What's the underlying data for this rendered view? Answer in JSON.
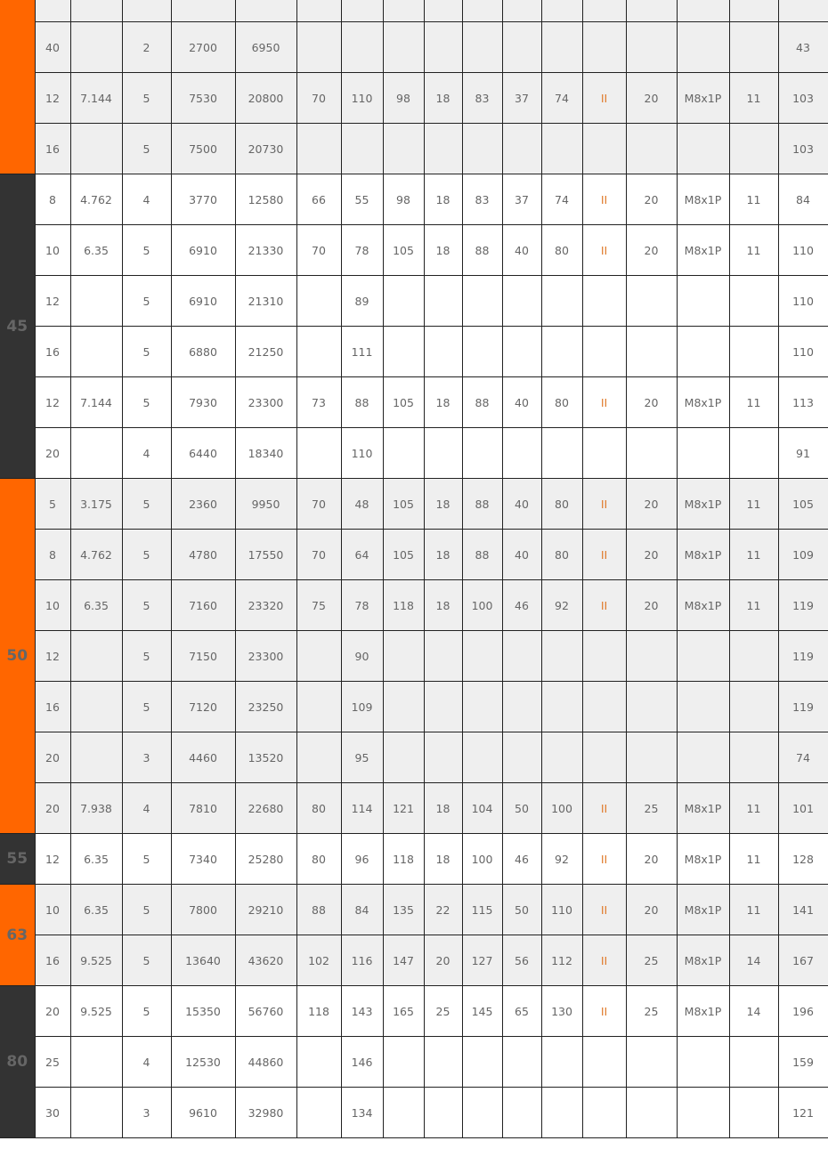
{
  "colors": {
    "orange": "#ff6600",
    "dark": "#333333",
    "accent": "#e07b2c",
    "row_grey": "#efefef",
    "row_white": "#ffffff"
  },
  "groups": [
    {
      "label": "",
      "color": "orange",
      "shade": "grey",
      "partial_top": true,
      "rows": [
        [
          "40",
          "",
          "2",
          "2700",
          "6950",
          "",
          "",
          "",
          "",
          "",
          "",
          "",
          "",
          "",
          "",
          "",
          "43"
        ],
        [
          "12",
          "7.144",
          "5",
          "7530",
          "20800",
          "70",
          "110",
          "98",
          "18",
          "83",
          "37",
          "74",
          "II",
          "20",
          "M8x1P",
          "11",
          "103"
        ],
        [
          "16",
          "",
          "5",
          "7500",
          "20730",
          "",
          "",
          "",
          "",
          "",
          "",
          "",
          "",
          "",
          "",
          "",
          "103"
        ]
      ]
    },
    {
      "label": "45",
      "color": "dark",
      "shade": "white",
      "rows": [
        [
          "8",
          "4.762",
          "4",
          "3770",
          "12580",
          "66",
          "55",
          "98",
          "18",
          "83",
          "37",
          "74",
          "II",
          "20",
          "M8x1P",
          "11",
          "84"
        ],
        [
          "10",
          "6.35",
          "5",
          "6910",
          "21330",
          "70",
          "78",
          "105",
          "18",
          "88",
          "40",
          "80",
          "II",
          "20",
          "M8x1P",
          "11",
          "110"
        ],
        [
          "12",
          "",
          "5",
          "6910",
          "21310",
          "",
          "89",
          "",
          "",
          "",
          "",
          "",
          "",
          "",
          "",
          "",
          "110"
        ],
        [
          "16",
          "",
          "5",
          "6880",
          "21250",
          "",
          "111",
          "",
          "",
          "",
          "",
          "",
          "",
          "",
          "",
          "",
          "110"
        ],
        [
          "12",
          "7.144",
          "5",
          "7930",
          "23300",
          "73",
          "88",
          "105",
          "18",
          "88",
          "40",
          "80",
          "II",
          "20",
          "M8x1P",
          "11",
          "113"
        ],
        [
          "20",
          "",
          "4",
          "6440",
          "18340",
          "",
          "110",
          "",
          "",
          "",
          "",
          "",
          "",
          "",
          "",
          "",
          "91"
        ]
      ]
    },
    {
      "label": "50",
      "color": "orange",
      "shade": "grey",
      "rows": [
        [
          "5",
          "3.175",
          "5",
          "2360",
          "9950",
          "70",
          "48",
          "105",
          "18",
          "88",
          "40",
          "80",
          "II",
          "20",
          "M8x1P",
          "11",
          "105"
        ],
        [
          "8",
          "4.762",
          "5",
          "4780",
          "17550",
          "70",
          "64",
          "105",
          "18",
          "88",
          "40",
          "80",
          "II",
          "20",
          "M8x1P",
          "11",
          "109"
        ],
        [
          "10",
          "6.35",
          "5",
          "7160",
          "23320",
          "75",
          "78",
          "118",
          "18",
          "100",
          "46",
          "92",
          "II",
          "20",
          "M8x1P",
          "11",
          "119"
        ],
        [
          "12",
          "",
          "5",
          "7150",
          "23300",
          "",
          "90",
          "",
          "",
          "",
          "",
          "",
          "",
          "",
          "",
          "",
          "119"
        ],
        [
          "16",
          "",
          "5",
          "7120",
          "23250",
          "",
          "109",
          "",
          "",
          "",
          "",
          "",
          "",
          "",
          "",
          "",
          "119"
        ],
        [
          "20",
          "",
          "3",
          "4460",
          "13520",
          "",
          "95",
          "",
          "",
          "",
          "",
          "",
          "",
          "",
          "",
          "",
          "74"
        ],
        [
          "20",
          "7.938",
          "4",
          "7810",
          "22680",
          "80",
          "114",
          "121",
          "18",
          "104",
          "50",
          "100",
          "II",
          "25",
          "M8x1P",
          "11",
          "101"
        ]
      ]
    },
    {
      "label": "55",
      "color": "dark",
      "shade": "white",
      "rows": [
        [
          "12",
          "6.35",
          "5",
          "7340",
          "25280",
          "80",
          "96",
          "118",
          "18",
          "100",
          "46",
          "92",
          "II",
          "20",
          "M8x1P",
          "11",
          "128"
        ]
      ]
    },
    {
      "label": "63",
      "color": "orange",
      "shade": "grey",
      "rows": [
        [
          "10",
          "6.35",
          "5",
          "7800",
          "29210",
          "88",
          "84",
          "135",
          "22",
          "115",
          "50",
          "110",
          "II",
          "20",
          "M8x1P",
          "11",
          "141"
        ],
        [
          "16",
          "9.525",
          "5",
          "13640",
          "43620",
          "102",
          "116",
          "147",
          "20",
          "127",
          "56",
          "112",
          "II",
          "25",
          "M8x1P",
          "14",
          "167"
        ]
      ]
    },
    {
      "label": "80",
      "color": "dark",
      "shade": "white",
      "rows": [
        [
          "20",
          "9.525",
          "5",
          "15350",
          "56760",
          "118",
          "143",
          "165",
          "25",
          "145",
          "65",
          "130",
          "II",
          "25",
          "M8x1P",
          "14",
          "196"
        ],
        [
          "25",
          "",
          "4",
          "12530",
          "44860",
          "",
          "146",
          "",
          "",
          "",
          "",
          "",
          "",
          "",
          "",
          "",
          "159"
        ],
        [
          "30",
          "",
          "3",
          "9610",
          "32980",
          "",
          "134",
          "",
          "",
          "",
          "",
          "",
          "",
          "",
          "",
          "",
          "121"
        ]
      ]
    }
  ]
}
